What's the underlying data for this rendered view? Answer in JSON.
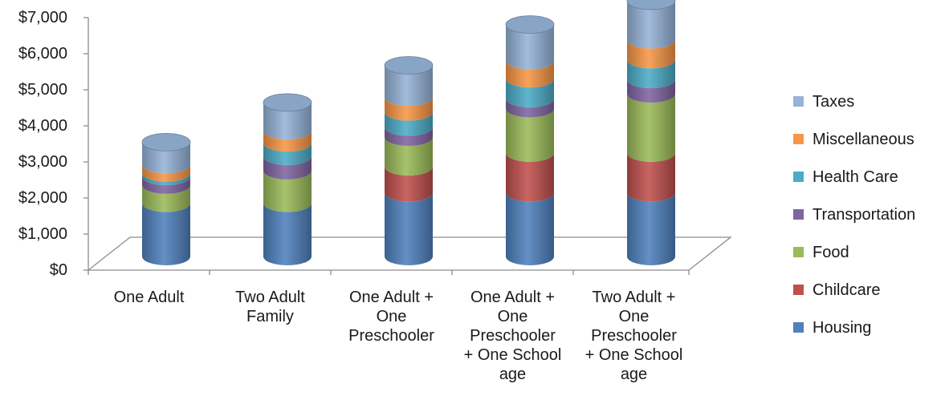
{
  "chart_data": {
    "type": "bar",
    "style": "3d-stacked-cylinder",
    "categories": [
      "One Adult",
      "Two Adult Family",
      "One Adult + One Preschooler",
      "One Adult + One Preschooler + One School age",
      "Two Adult + One Preschooler + One School age"
    ],
    "category_lines": [
      [
        "One Adult"
      ],
      [
        "Two Adult",
        "Family"
      ],
      [
        "One Adult +",
        "One",
        "Preschooler"
      ],
      [
        "One Adult +",
        "One",
        "Preschooler",
        "+ One School",
        "age"
      ],
      [
        "Two Adult +",
        "One",
        "Preschooler",
        "+ One School",
        "age"
      ]
    ],
    "series": [
      {
        "name": "Housing",
        "color": "#4F81BD",
        "values": [
          1480,
          1480,
          1770,
          1770,
          1770
        ]
      },
      {
        "name": "Childcare",
        "color": "#C0504D",
        "values": [
          0,
          0,
          720,
          1100,
          1100
        ]
      },
      {
        "name": "Food",
        "color": "#9BBB59",
        "values": [
          500,
          900,
          820,
          1230,
          1640
        ]
      },
      {
        "name": "Transportation",
        "color": "#8064A2",
        "values": [
          240,
          400,
          280,
          280,
          400
        ]
      },
      {
        "name": "Health Care",
        "color": "#4BACC6",
        "values": [
          100,
          370,
          420,
          550,
          550
        ]
      },
      {
        "name": "Miscellaneous",
        "color": "#F79646",
        "values": [
          230,
          340,
          410,
          500,
          550
        ]
      },
      {
        "name": "Taxes",
        "color": "#95B3D7",
        "values": [
          620,
          780,
          880,
          1000,
          1080
        ]
      }
    ],
    "y_ticks": [
      "$0",
      "$1,000",
      "$2,000",
      "$3,000",
      "$4,000",
      "$5,000",
      "$6,000",
      "$7,000"
    ],
    "ylim": [
      0,
      7000
    ],
    "legend_position": "right",
    "grid": false,
    "xlabel": "",
    "ylabel": "",
    "title": ""
  }
}
